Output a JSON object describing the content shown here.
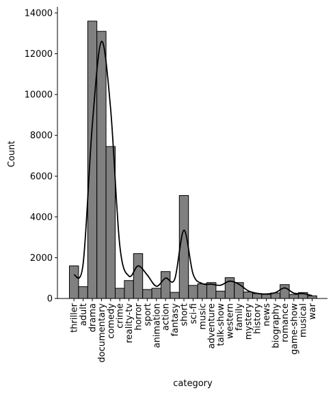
{
  "chart_data": {
    "type": "bar",
    "xlabel": "category",
    "ylabel": "Count",
    "ylim": [
      0,
      14300
    ],
    "yticks": [
      0,
      2000,
      4000,
      6000,
      8000,
      10000,
      12000,
      14000
    ],
    "bar_color": "#808080",
    "kde_color": "#000000",
    "categories": [
      "thriller",
      "adult",
      "drama",
      "documentary",
      "comedy",
      "crime",
      "reality-tv",
      "horror",
      "sport",
      "animation",
      "action",
      "fantasy",
      "short",
      "sci-fi",
      "music",
      "adventure",
      "talk-show",
      "western",
      "family",
      "mystery",
      "history",
      "news",
      "biography",
      "romance",
      "game-show",
      "musical",
      "war"
    ],
    "values": [
      1600,
      580,
      13600,
      13100,
      7450,
      500,
      880,
      2200,
      440,
      500,
      1320,
      300,
      5050,
      640,
      720,
      780,
      360,
      1020,
      780,
      320,
      240,
      200,
      270,
      680,
      200,
      290,
      130
    ],
    "kde": [
      1150,
      1700,
      8500,
      12600,
      9300,
      2600,
      1100,
      1600,
      1150,
      600,
      1000,
      950,
      3350,
      1200,
      730,
      700,
      650,
      850,
      700,
      380,
      250,
      220,
      290,
      520,
      260,
      240,
      140
    ]
  }
}
